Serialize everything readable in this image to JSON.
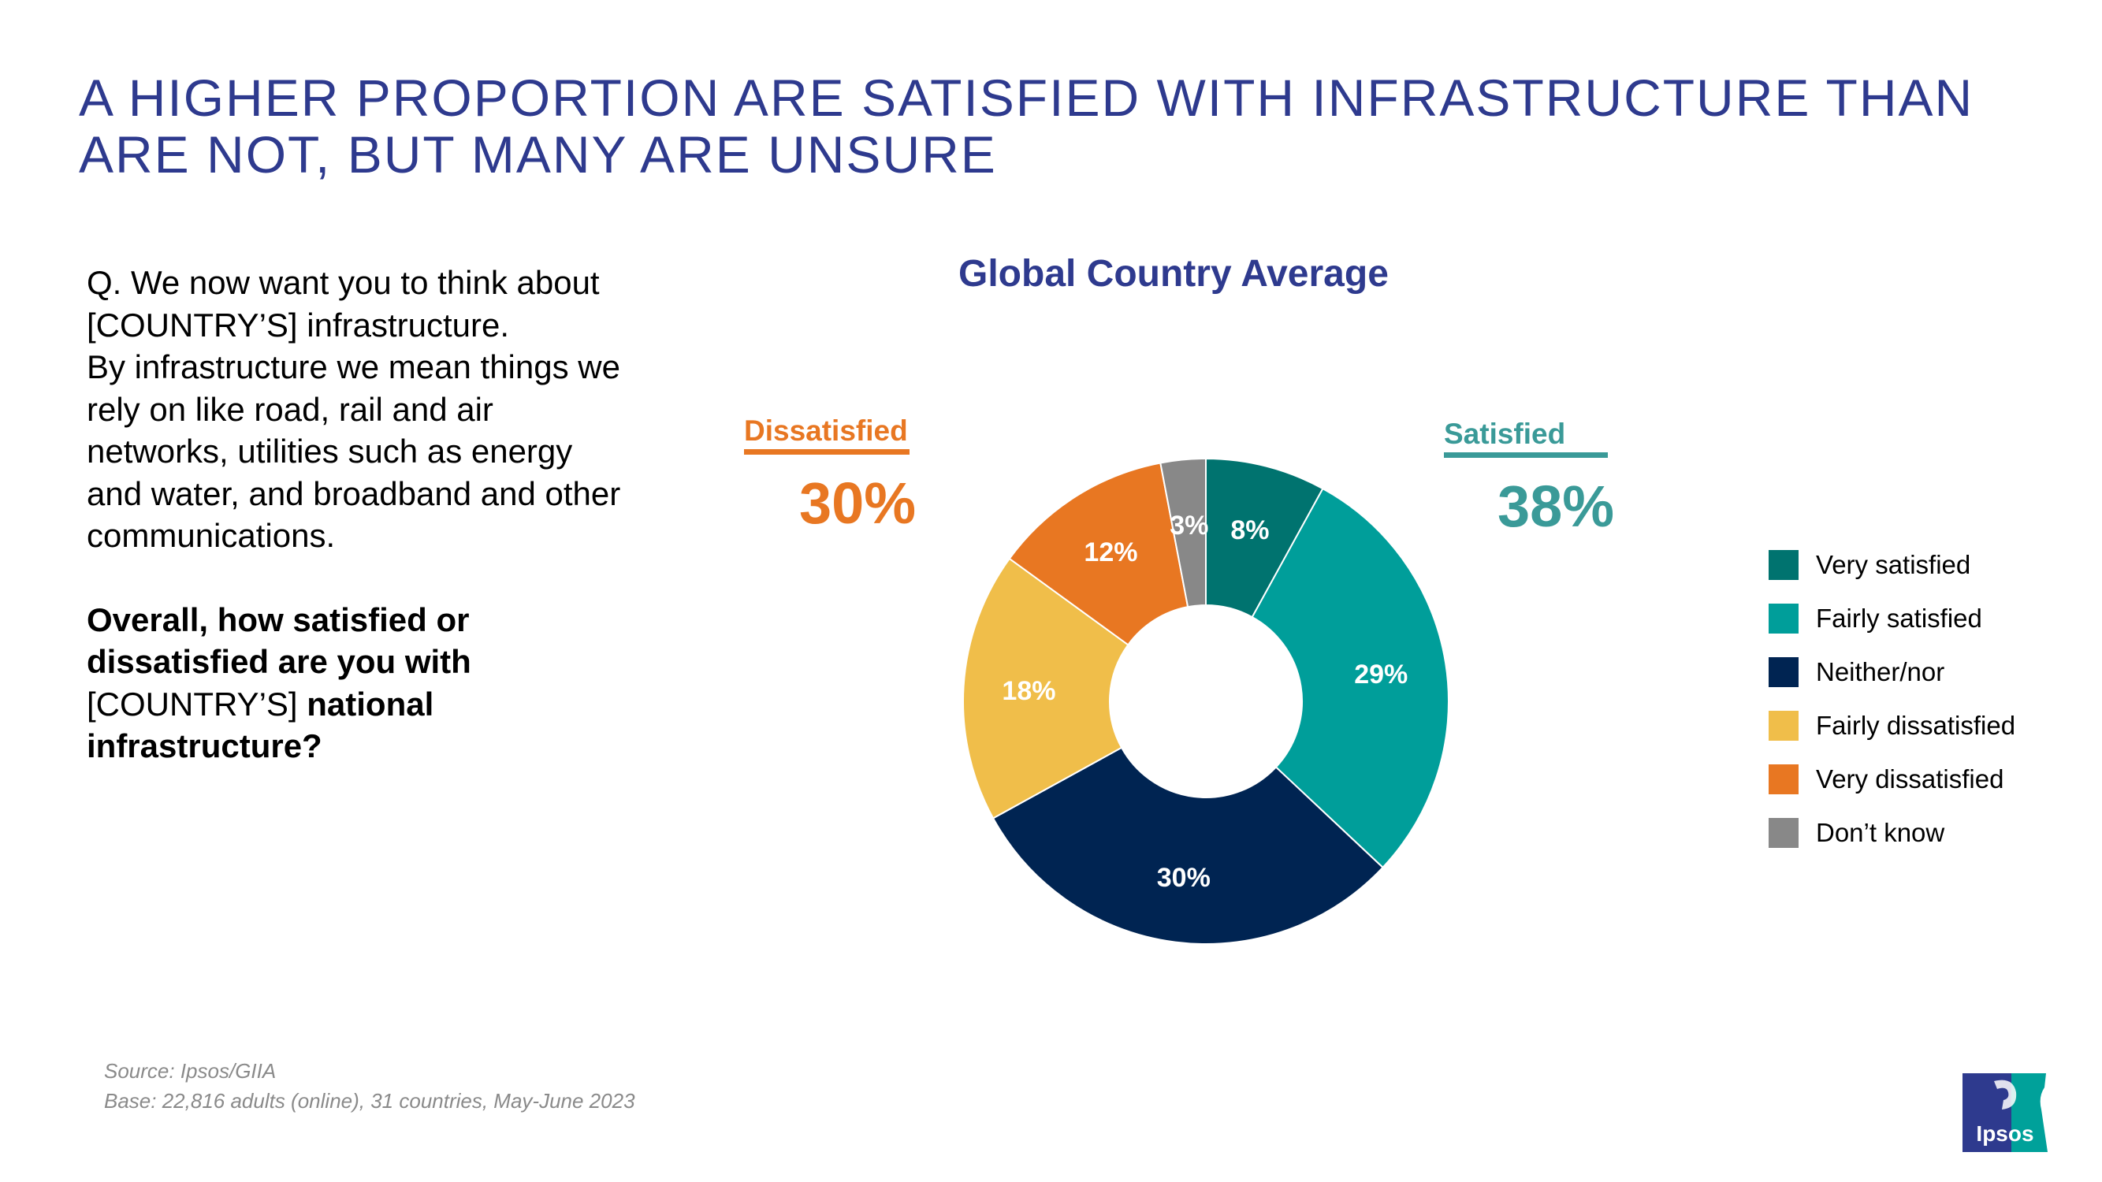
{
  "title_line1": "A HIGHER PROPORTION ARE SATISFIED WITH INFRASTRUCTURE THAN",
  "title_line2": "ARE NOT, BUT MANY ARE UNSURE",
  "question": {
    "lines": [
      "Q. We now want you to think about",
      "[COUNTRY’S] infrastructure.",
      "By infrastructure we mean things we",
      "rely on like road, rail and air",
      "networks, utilities such as energy",
      "and water, and broadband and other",
      "communications."
    ],
    "bold_line1": "Overall, how satisfied or",
    "bold_line2": "dissatisfied are you with",
    "line3_plain": "[COUNTRY’S] ",
    "line3_bold": "national",
    "bold_line4": "infrastructure?"
  },
  "groups": {
    "dissatisfied_label": "Dissatisfied",
    "dissatisfied_value": "30%",
    "satisfied_label": "Satisfied",
    "satisfied_value": "38%"
  },
  "chart_data": {
    "type": "pie",
    "donut": true,
    "title": "Global Country Average",
    "categories": [
      "Very satisfied",
      "Fairly satisfied",
      "Neither/nor",
      "Fairly dissatisfied",
      "Very dissatisfied",
      "Don’t know"
    ],
    "values": [
      8,
      29,
      30,
      18,
      12,
      3
    ],
    "labels": [
      "8%",
      "29%",
      "30%",
      "18%",
      "12%",
      "3%"
    ],
    "colors": [
      "#00736f",
      "#009e9a",
      "#002452",
      "#f0be4a",
      "#e87722",
      "#888888"
    ],
    "legend_position": "right"
  },
  "footer": {
    "source": "Source: Ipsos/GIIA",
    "base": "Base: 22,816 adults (online), 31 countries, May-June 2023"
  },
  "logo": {
    "text": "Ipsos",
    "colors": [
      "#2e3a8e",
      "#00a19a"
    ]
  }
}
